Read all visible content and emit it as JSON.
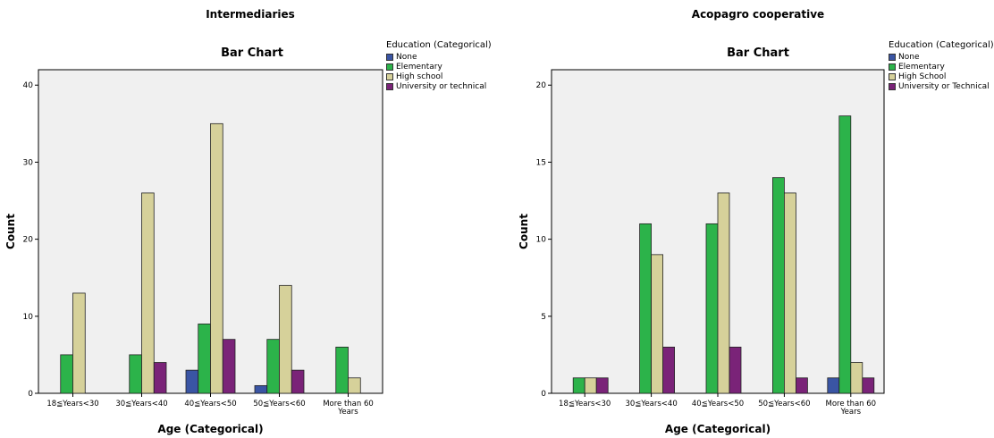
{
  "colors": {
    "none": "#3a55a4",
    "elementary": "#2cb34a",
    "high_school": "#d6d19a",
    "university": "#7a2378",
    "plot_bg": "#f0f0f0"
  },
  "chart_data": [
    {
      "type": "bar",
      "panel_title": "Intermediaries",
      "title": "Bar Chart",
      "xlabel": "Age (Categorical)",
      "ylabel": "Count",
      "ylim": [
        0,
        42
      ],
      "yticks": [
        0,
        10,
        20,
        30,
        40
      ],
      "categories": [
        "18≦Years<30",
        "30≦Years<40",
        "40≦Years<50",
        "50≦Years<60",
        "More than 60 Years"
      ],
      "legend_title": "Education (Categorical)",
      "legend_position": "top-right",
      "series": [
        {
          "name": "None",
          "values": [
            0,
            0,
            3,
            1,
            0
          ]
        },
        {
          "name": "Elementary",
          "values": [
            5,
            5,
            9,
            7,
            6
          ]
        },
        {
          "name": "High school",
          "values": [
            13,
            26,
            35,
            14,
            2
          ]
        },
        {
          "name": "University or technical",
          "values": [
            0,
            4,
            7,
            3,
            0
          ]
        }
      ]
    },
    {
      "type": "bar",
      "panel_title": "Acopagro cooperative",
      "title": "Bar Chart",
      "xlabel": "Age (Categorical)",
      "ylabel": "Count",
      "ylim": [
        0,
        21
      ],
      "yticks": [
        0,
        5,
        10,
        15,
        20
      ],
      "categories": [
        "18≦Years<30",
        "30≦Years<40",
        "40≦Years<50",
        "50≦Years<60",
        "More than 60 Years"
      ],
      "legend_title": "Education (Categorical)",
      "legend_position": "top-right",
      "series": [
        {
          "name": "None",
          "values": [
            0,
            0,
            0,
            0,
            1
          ]
        },
        {
          "name": "Elementary",
          "values": [
            1,
            11,
            11,
            14,
            18
          ]
        },
        {
          "name": "High School",
          "values": [
            1,
            9,
            13,
            13,
            2
          ]
        },
        {
          "name": "University or Technical",
          "values": [
            1,
            3,
            3,
            1,
            1
          ]
        }
      ]
    }
  ]
}
